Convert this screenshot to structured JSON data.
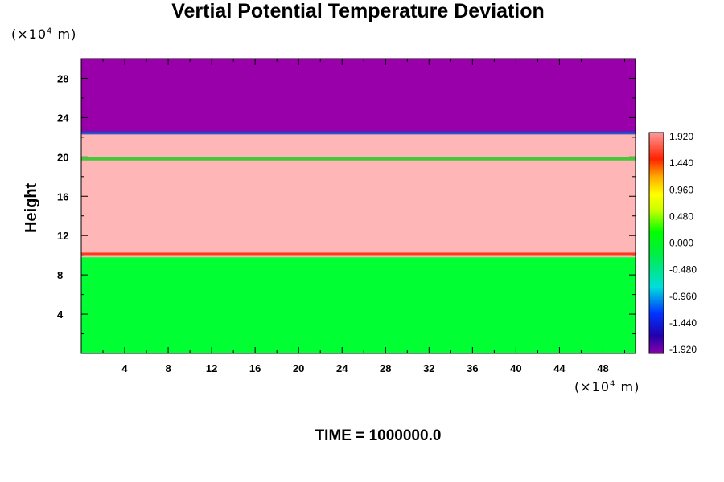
{
  "chart_data": {
    "type": "heatmap",
    "title": "Vertial Potential Temperature Deviation",
    "ylabel": "Height",
    "y_unit": "(×10",
    "x_unit": "(×10",
    "unit_exp": "4",
    "unit_tail": " m)",
    "xlim": [
      0,
      51
    ],
    "ylim": [
      0,
      30
    ],
    "x_ticks": [
      4,
      8,
      12,
      16,
      20,
      24,
      28,
      32,
      36,
      40,
      44,
      48
    ],
    "y_ticks": [
      4,
      8,
      12,
      16,
      20,
      24,
      28
    ],
    "colorbar": {
      "min": -1.92,
      "max": 1.92,
      "labels": [
        "1.920",
        "1.440",
        "0.960",
        "0.480",
        "0.000",
        "-0.480",
        "-0.960",
        "-1.440",
        "-1.920"
      ]
    },
    "bands": [
      {
        "y0": 0,
        "y1": 9.8,
        "value": 0.0,
        "color": "#00ff33"
      },
      {
        "y0": 9.8,
        "y1": 22.5,
        "value": 2.0,
        "color": "#ffb6b6"
      },
      {
        "y0": 22.5,
        "y1": 30,
        "value": -2.0,
        "color": "#9900aa"
      }
    ],
    "interfaces": [
      {
        "y": 10.1,
        "color": "#ff2200"
      },
      {
        "y": 19.8,
        "color": "#22cc22"
      },
      {
        "y": 22.45,
        "color": "#1144cc"
      }
    ]
  },
  "footer": {
    "time_label": "TIME = 1000000.0"
  },
  "colors": {
    "tick_color": "#000000"
  }
}
